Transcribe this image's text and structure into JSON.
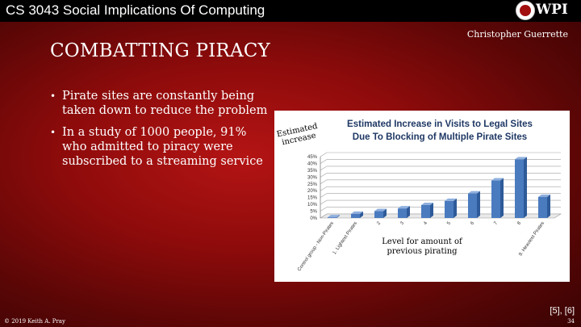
{
  "header": {
    "course": "CS 3043 Social Implications Of Computing",
    "logo_text": "WPI"
  },
  "author": "Christopher Guerrette",
  "title": "COMBATTING PIRACY",
  "bullets": [
    "Pirate sites are constantly being taken down to reduce the problem",
    "In a study of 1000 people, 91% who admitted to piracy were subscribed to a streaming service"
  ],
  "chart_data": {
    "type": "bar",
    "title_lines": [
      "Estimated Increase in Visits to Legal Sites",
      "Due To Blocking of Multiple Pirate Sites"
    ],
    "ylabel_lines": [
      "Estimated",
      "increase"
    ],
    "xlabel_lines": [
      "Level for amount of",
      "previous pirating"
    ],
    "categories": [
      "Control group - Non-Pirates",
      "1. Lightest Pirates",
      "2",
      "3",
      "4",
      "5",
      "6",
      "7",
      "8",
      "9. Heaviest Pirates"
    ],
    "values": [
      0.5,
      3,
      5,
      7,
      9.5,
      12.5,
      18,
      27.5,
      43,
      15.5
    ],
    "ylim": [
      0,
      45
    ],
    "yticks": [
      "0%",
      "5%",
      "10%",
      "15%",
      "20%",
      "25%",
      "30%",
      "35%",
      "40%",
      "45%"
    ],
    "grid": true,
    "bar_color": "#4a7bbf"
  },
  "footer": {
    "references": "[5], [6]",
    "copyright": "© 2019 Keith A. Pray",
    "page_number": "34"
  }
}
